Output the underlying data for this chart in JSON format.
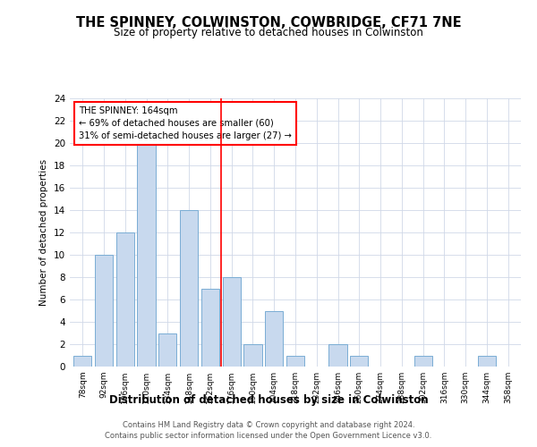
{
  "title": "THE SPINNEY, COLWINSTON, COWBRIDGE, CF71 7NE",
  "subtitle": "Size of property relative to detached houses in Colwinston",
  "xlabel": "Distribution of detached houses by size in Colwinston",
  "ylabel": "Number of detached properties",
  "bar_color": "#c8d9ee",
  "bar_edge_color": "#7aadd4",
  "categories": [
    "78sqm",
    "92sqm",
    "106sqm",
    "120sqm",
    "134sqm",
    "148sqm",
    "162sqm",
    "176sqm",
    "190sqm",
    "204sqm",
    "218sqm",
    "232sqm",
    "246sqm",
    "260sqm",
    "274sqm",
    "288sqm",
    "302sqm",
    "316sqm",
    "330sqm",
    "344sqm",
    "358sqm"
  ],
  "values": [
    1,
    10,
    12,
    20,
    3,
    14,
    7,
    8,
    2,
    5,
    1,
    0,
    2,
    1,
    0,
    0,
    1,
    0,
    0,
    1,
    0
  ],
  "ylim": [
    0,
    24
  ],
  "yticks": [
    0,
    2,
    4,
    6,
    8,
    10,
    12,
    14,
    16,
    18,
    20,
    22,
    24
  ],
  "property_line_x": 6.5,
  "annotation_text": "THE SPINNEY: 164sqm\n← 69% of detached houses are smaller (60)\n31% of semi-detached houses are larger (27) →",
  "footer_line1": "Contains HM Land Registry data © Crown copyright and database right 2024.",
  "footer_line2": "Contains public sector information licensed under the Open Government Licence v3.0.",
  "background_color": "#ffffff",
  "grid_color": "#d0d8e8"
}
